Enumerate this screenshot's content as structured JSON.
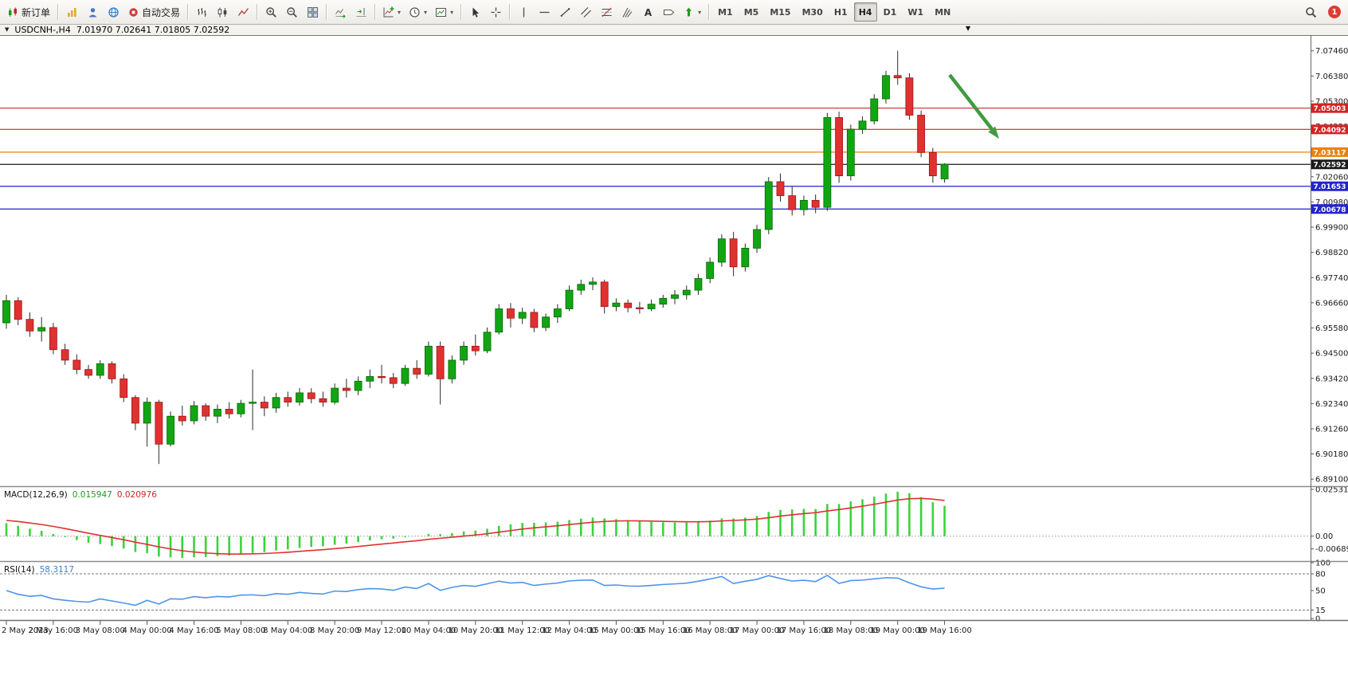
{
  "toolbar": {
    "buttons": [
      {
        "name": "new-order",
        "icon": "order",
        "label": "新订单"
      },
      {
        "sep": true
      },
      {
        "name": "market-watch",
        "icon": "market-watch"
      },
      {
        "name": "profile",
        "icon": "profile"
      },
      {
        "name": "community",
        "icon": "community"
      },
      {
        "name": "auto-trading",
        "icon": "autotrading",
        "label": "自动交易"
      },
      {
        "sep": true
      },
      {
        "name": "bar-chart",
        "icon": "bars"
      },
      {
        "name": "candlestick-chart",
        "icon": "candles"
      },
      {
        "name": "line-chart",
        "icon": "line"
      },
      {
        "sep": true
      },
      {
        "name": "zoom-in",
        "icon": "zoom-in"
      },
      {
        "name": "zoom-out",
        "icon": "zoom-out"
      },
      {
        "name": "tile-windows",
        "icon": "tile"
      },
      {
        "sep": true
      },
      {
        "name": "auto-scroll",
        "icon": "autoscroll"
      },
      {
        "name": "chart-shift",
        "icon": "shift"
      },
      {
        "sep": true
      },
      {
        "name": "indicators",
        "icon": "indicators",
        "dropdown": true
      },
      {
        "name": "periods",
        "icon": "clock",
        "dropdown": true
      },
      {
        "name": "templates",
        "icon": "template",
        "dropdown": true
      },
      {
        "sep": true
      },
      {
        "name": "cursor",
        "icon": "cursor"
      },
      {
        "name": "crosshair",
        "icon": "crosshair"
      },
      {
        "sep": true
      },
      {
        "name": "vertical-line",
        "icon": "vline"
      },
      {
        "name": "horizontal-line",
        "icon": "hline"
      },
      {
        "name": "trendline",
        "icon": "trendline"
      },
      {
        "name": "equidistant-channel",
        "icon": "channel"
      },
      {
        "name": "fibonacci",
        "icon": "fibo"
      },
      {
        "name": "andrews-pitchfork",
        "icon": "pitchfork"
      },
      {
        "name": "text",
        "icon": "text"
      },
      {
        "name": "text-label",
        "icon": "label"
      },
      {
        "name": "arrows",
        "icon": "arrows",
        "dropdown": true
      },
      {
        "sep": true
      }
    ],
    "timeframes": [
      "M1",
      "M5",
      "M15",
      "M30",
      "H1",
      "H4",
      "D1",
      "W1",
      "MN"
    ],
    "active_timeframe": "H4",
    "notification_count": "1"
  },
  "icons": {
    "dropdown_chevron": "▾",
    "title_dropdown": "▼",
    "shift_marker": "▼"
  },
  "chart_header": {
    "symbol_label": "USDCNH-,H4",
    "ohlc": "7.01970 7.02641 7.01805 7.02592"
  },
  "price_scale": {
    "labels": [
      "7.07460",
      "7.06380",
      "7.05300",
      "7.04220",
      "7.03140",
      "7.02060",
      "7.00980",
      "6.99900",
      "6.98820",
      "6.97740",
      "6.96660",
      "6.95580",
      "6.94500",
      "6.93420",
      "6.92340",
      "6.91260",
      "6.90180",
      "6.89100"
    ]
  },
  "horizontal_lines": [
    {
      "label": "7.05003",
      "price": 7.05003,
      "color": "#d32424"
    },
    {
      "label": "7.04092",
      "price": 7.04092,
      "color": "#d32424"
    },
    {
      "label": "7.03117",
      "price": 7.03117,
      "color": "#e8820c"
    },
    {
      "label": "7.02592",
      "price": 7.02592,
      "color": "#1c1c1c"
    },
    {
      "label": "7.01653",
      "price": 7.01653,
      "color": "#2323cc"
    },
    {
      "label": "7.00678",
      "price": 7.00678,
      "color": "#2323cc"
    }
  ],
  "macd_panel": {
    "label": "MACD(12,26,9)",
    "value_main": "0.015947",
    "value_signal": "0.020976",
    "axis": [
      "0.025318",
      "0.00",
      "-0.006894"
    ]
  },
  "rsi_panel": {
    "label": "RSI(14)",
    "value": "58.3117",
    "axis": [
      "100",
      "80",
      "50",
      "15",
      "0"
    ],
    "levels": [
      80,
      15
    ]
  },
  "time_axis": [
    "2 May 2023",
    "2 May 16:00",
    "3 May 08:00",
    "4 May 00:00",
    "4 May 16:00",
    "5 May 08:00",
    "8 May 04:00",
    "8 May 20:00",
    "9 May 12:00",
    "10 May 04:00",
    "10 May 20:00",
    "11 May 12:00",
    "12 May 04:00",
    "15 May 00:00",
    "15 May 16:00",
    "16 May 08:00",
    "17 May 00:00",
    "17 May 16:00",
    "18 May 08:00",
    "19 May 00:00",
    "19 May 16:00"
  ],
  "chart_data": {
    "type": "candlestick",
    "title": "USDCNH- H4",
    "ylim": [
      6.888,
      7.081
    ],
    "x_label_every": 4,
    "ohlc": [
      [
        6.958,
        6.97,
        6.9555,
        6.9675
      ],
      [
        6.9675,
        6.969,
        6.957,
        6.9595
      ],
      [
        6.9595,
        6.9625,
        6.952,
        6.9545
      ],
      [
        6.9545,
        6.9605,
        6.95,
        6.956
      ],
      [
        6.956,
        6.958,
        6.9445,
        6.9465
      ],
      [
        6.9465,
        6.949,
        6.94,
        6.942
      ],
      [
        6.942,
        6.9445,
        6.936,
        6.938
      ],
      [
        6.938,
        6.94,
        6.934,
        6.9355
      ],
      [
        6.9355,
        6.942,
        6.934,
        6.9405
      ],
      [
        6.9405,
        6.9415,
        6.932,
        6.934
      ],
      [
        6.934,
        6.936,
        6.924,
        6.926
      ],
      [
        6.926,
        6.927,
        6.912,
        6.915
      ],
      [
        6.915,
        6.926,
        6.905,
        6.924
      ],
      [
        6.924,
        6.925,
        6.8975,
        6.906
      ],
      [
        6.906,
        6.92,
        6.905,
        6.918
      ],
      [
        6.918,
        6.9225,
        6.914,
        6.916
      ],
      [
        6.916,
        6.9245,
        6.9145,
        6.9225
      ],
      [
        6.9225,
        6.9235,
        6.916,
        6.918
      ],
      [
        6.918,
        6.923,
        6.915,
        6.921
      ],
      [
        6.921,
        6.924,
        6.917,
        6.919
      ],
      [
        6.919,
        6.925,
        6.9175,
        6.9235
      ],
      [
        6.9235,
        6.938,
        6.912,
        6.924
      ],
      [
        6.924,
        6.9265,
        6.918,
        6.9215
      ],
      [
        6.9215,
        6.928,
        6.9195,
        6.926
      ],
      [
        6.926,
        6.9285,
        6.922,
        6.924
      ],
      [
        6.924,
        6.93,
        6.9225,
        6.928
      ],
      [
        6.928,
        6.93,
        6.9235,
        6.9255
      ],
      [
        6.9255,
        6.9285,
        6.922,
        6.924
      ],
      [
        6.924,
        6.932,
        6.923,
        6.93
      ],
      [
        6.93,
        6.934,
        6.926,
        6.929
      ],
      [
        6.929,
        6.935,
        6.927,
        6.933
      ],
      [
        6.933,
        6.938,
        6.93,
        6.935
      ],
      [
        6.935,
        6.94,
        6.932,
        6.9345
      ],
      [
        6.9345,
        6.9365,
        6.93,
        6.932
      ],
      [
        6.932,
        6.94,
        6.931,
        6.9385
      ],
      [
        6.9385,
        6.942,
        6.934,
        6.936
      ],
      [
        6.936,
        6.95,
        6.935,
        6.948
      ],
      [
        6.948,
        6.95,
        6.923,
        6.934
      ],
      [
        6.934,
        6.944,
        6.932,
        6.942
      ],
      [
        6.942,
        6.95,
        6.94,
        6.948
      ],
      [
        6.948,
        6.953,
        6.944,
        6.946
      ],
      [
        6.946,
        6.956,
        6.945,
        6.954
      ],
      [
        6.954,
        6.966,
        6.953,
        6.964
      ],
      [
        6.964,
        6.9665,
        6.956,
        6.96
      ],
      [
        6.96,
        6.9645,
        6.9575,
        6.9625
      ],
      [
        6.9625,
        6.964,
        6.954,
        6.956
      ],
      [
        6.956,
        6.962,
        6.9545,
        6.9605
      ],
      [
        6.9605,
        6.966,
        6.958,
        6.964
      ],
      [
        6.964,
        6.974,
        6.963,
        6.972
      ],
      [
        6.972,
        6.9765,
        6.97,
        6.9745
      ],
      [
        6.9745,
        6.9775,
        6.972,
        6.9755
      ],
      [
        6.9755,
        6.9765,
        6.962,
        6.965
      ],
      [
        6.965,
        6.9685,
        6.963,
        6.9665
      ],
      [
        6.9665,
        6.968,
        6.9625,
        6.9645
      ],
      [
        6.9645,
        6.967,
        6.962,
        6.964
      ],
      [
        6.964,
        6.968,
        6.963,
        6.966
      ],
      [
        6.966,
        6.97,
        6.9645,
        6.9685
      ],
      [
        6.9685,
        6.972,
        6.966,
        6.97
      ],
      [
        6.97,
        6.974,
        6.968,
        6.972
      ],
      [
        6.972,
        6.979,
        6.97,
        6.977
      ],
      [
        6.977,
        6.986,
        6.975,
        6.984
      ],
      [
        6.984,
        6.996,
        6.982,
        6.994
      ],
      [
        6.994,
        6.997,
        6.978,
        6.982
      ],
      [
        6.982,
        6.992,
        6.98,
        6.99
      ],
      [
        6.99,
        7.0,
        6.988,
        6.998
      ],
      [
        6.998,
        7.0205,
        6.996,
        7.0185
      ],
      [
        7.0185,
        7.022,
        7.01,
        7.0125
      ],
      [
        7.0125,
        7.0165,
        7.004,
        7.0065
      ],
      [
        7.0065,
        7.0125,
        7.004,
        7.0105
      ],
      [
        7.0105,
        7.013,
        7.005,
        7.0075
      ],
      [
        7.0075,
        7.048,
        7.006,
        7.046
      ],
      [
        7.046,
        7.0485,
        7.018,
        7.021
      ],
      [
        7.021,
        7.043,
        7.019,
        7.041
      ],
      [
        7.041,
        7.0465,
        7.039,
        7.0445
      ],
      [
        7.0445,
        7.056,
        7.043,
        7.054
      ],
      [
        7.054,
        7.066,
        7.052,
        7.064
      ],
      [
        7.064,
        7.0746,
        7.06,
        7.063
      ],
      [
        7.063,
        7.065,
        7.045,
        7.047
      ],
      [
        7.047,
        7.049,
        7.029,
        7.031
      ],
      [
        7.031,
        7.033,
        7.018,
        7.021
      ],
      [
        7.0197,
        7.02641,
        7.01805,
        7.02592
      ]
    ],
    "indicators": [
      {
        "type": "MACD",
        "params": [
          12,
          26,
          9
        ]
      },
      {
        "type": "RSI",
        "params": [
          14
        ]
      }
    ],
    "annotation": {
      "type": "arrow",
      "direction": "down-right",
      "color": "#3f9b3f"
    }
  }
}
